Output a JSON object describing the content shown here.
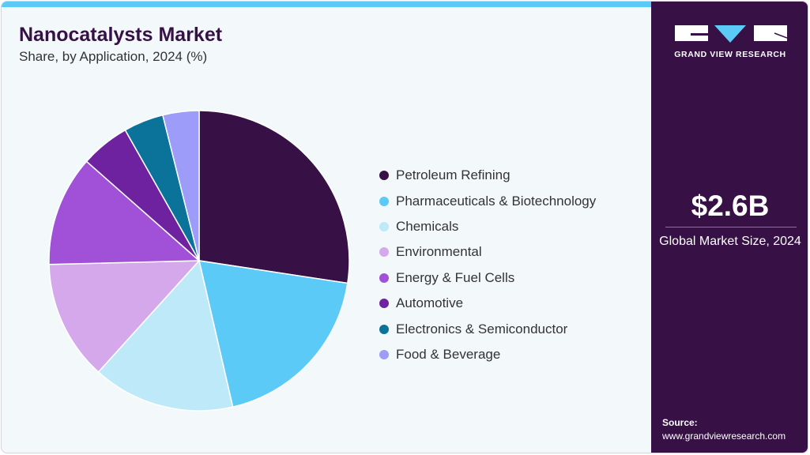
{
  "header": {
    "title": "Nanocatalysts Market",
    "subtitle": "Share, by Application, 2024 (%)"
  },
  "sidebar": {
    "logo_text": "GRAND VIEW RESEARCH",
    "market_size": "$2.6B",
    "market_size_label": "Global Market Size, 2024",
    "source_label": "Source:",
    "source_url": "www.grandviewresearch.com"
  },
  "chart_data": {
    "type": "pie",
    "title": "Nanocatalysts Market",
    "subtitle": "Share, by Application, 2024 (%)",
    "legend_position": "right",
    "categories": [
      "Petroleum Refining",
      "Pharmaceuticals & Biotechnology",
      "Chemicals",
      "Environmental",
      "Energy & Fuel Cells",
      "Automotive",
      "Electronics & Semiconductor",
      "Food & Beverage"
    ],
    "values": [
      27.4,
      19.0,
      15.3,
      12.9,
      11.9,
      5.3,
      4.3,
      3.9
    ],
    "colors": [
      "#371145",
      "#5bcaf6",
      "#bde9f9",
      "#d5a8ec",
      "#a150d8",
      "#6e22a0",
      "#0b739a",
      "#9e9cf9"
    ]
  }
}
